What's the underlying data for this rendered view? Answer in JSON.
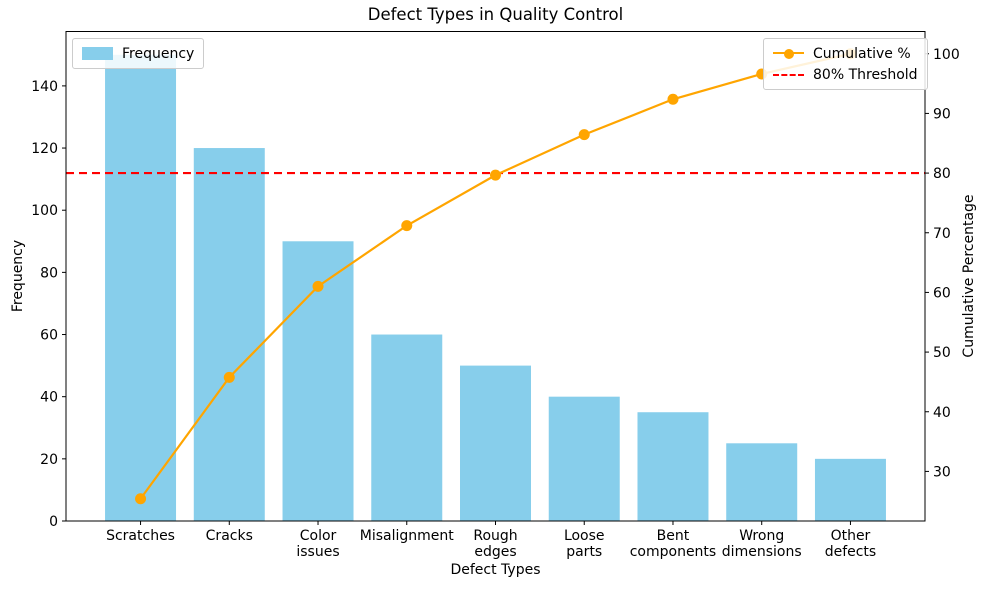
{
  "chart_data": {
    "type": "bar",
    "subtype": "pareto",
    "title": "Defect Types in Quality Control",
    "xlabel": "Defect Types",
    "ylabel_left": "Frequency",
    "ylabel_right": "Cumulative Percentage",
    "categories": [
      "Scratches",
      "Cracks",
      "Color issues",
      "Misalignment",
      "Rough edges",
      "Loose parts",
      "Bent components",
      "Wrong dimensions",
      "Other defects"
    ],
    "series": [
      {
        "name": "Frequency",
        "type": "bar",
        "axis": "left",
        "color": "#87CEEB",
        "values": [
          150,
          120,
          90,
          60,
          50,
          40,
          35,
          25,
          20
        ]
      },
      {
        "name": "Cumulative %",
        "type": "line",
        "axis": "right",
        "color": "#FFA500",
        "marker": "circle",
        "values": [
          25.42,
          45.76,
          61.02,
          71.19,
          79.66,
          86.44,
          92.37,
          96.61,
          100.0
        ]
      }
    ],
    "threshold": {
      "label": "80% Threshold",
      "value": 80,
      "color": "#FF0000",
      "linestyle": "dashed",
      "axis": "right"
    },
    "yticks_left": [
      0,
      20,
      40,
      60,
      80,
      100,
      120,
      140
    ],
    "yticks_right": [
      30,
      40,
      50,
      60,
      70,
      80,
      90,
      100
    ],
    "ylim_left": [
      0,
      157.5
    ],
    "ylim_right": [
      21.69,
      103.73
    ],
    "xlim": [
      -0.84,
      8.84
    ],
    "bar_width": 0.8,
    "grid": false,
    "legend_left": {
      "position": "upper left",
      "entries": [
        "Frequency"
      ]
    },
    "legend_right": {
      "position": "upper right",
      "entries": [
        "Cumulative %",
        "80% Threshold"
      ]
    }
  },
  "colors": {
    "bar": "#87CEEB",
    "line": "#FFA500",
    "threshold": "#FF0000",
    "text": "#000000",
    "background": "#FFFFFF",
    "legend_border": "#CCCCCC",
    "spine": "#000000"
  }
}
